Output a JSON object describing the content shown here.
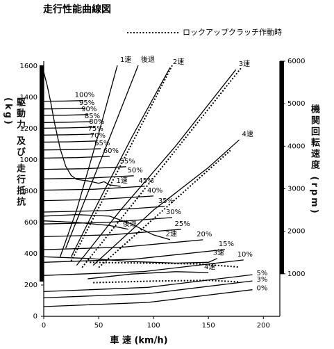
{
  "chart_data": {
    "type": "line",
    "title": "走行性能曲線図",
    "xlabel": "車 速 (km/h)",
    "ylabel": "駆動力 及び 走行抵抗 (kg)",
    "y2label": "機関回転速度 (rpm)",
    "legend": {
      "label": "ロックアップクラッチ作動時",
      "line_style": "dotted"
    },
    "xlim": [
      0,
      215
    ],
    "xticks": [
      0,
      50,
      100,
      150,
      200
    ],
    "ylim": [
      0,
      1630
    ],
    "yticks": [
      0,
      200,
      400,
      600,
      800,
      1000,
      1200,
      1400,
      1600
    ],
    "y2lim": [
      0,
      6000
    ],
    "y2ticks": [
      1000,
      2000,
      3000,
      4000,
      5000,
      6000
    ],
    "color": "#000000",
    "series": [
      {
        "name": "100%",
        "x": [
          0,
          18,
          36
        ],
        "values": [
          1374,
          1375,
          1378
        ]
      },
      {
        "name": "95%",
        "x": [
          0,
          19,
          38
        ],
        "values": [
          1325,
          1326,
          1329
        ]
      },
      {
        "name": "90%",
        "x": [
          0,
          20,
          40
        ],
        "values": [
          1284,
          1285,
          1289
        ]
      },
      {
        "name": "85%",
        "x": [
          0,
          21,
          43
        ],
        "values": [
          1238,
          1240,
          1244
        ]
      },
      {
        "name": "80%",
        "x": [
          0,
          23,
          47
        ],
        "values": [
          1202,
          1204,
          1209
        ]
      },
      {
        "name": "75%",
        "x": [
          0,
          23,
          46
        ],
        "values": [
          1158,
          1160,
          1164
        ]
      },
      {
        "name": "70%",
        "x": [
          0,
          24,
          48
        ],
        "values": [
          1113,
          1115,
          1120
        ]
      },
      {
        "name": "65%",
        "x": [
          0,
          26,
          52
        ],
        "values": [
          1063,
          1065,
          1071
        ]
      },
      {
        "name": "60%",
        "x": [
          0,
          30,
          60
        ],
        "values": [
          1011,
          1014,
          1022
        ]
      },
      {
        "name": "55%",
        "x": [
          0,
          37,
          75
        ],
        "values": [
          939,
          943,
          956
        ]
      },
      {
        "name": "50%",
        "x": [
          0,
          41,
          82
        ],
        "values": [
          878,
          883,
          898
        ]
      },
      {
        "name": "45%",
        "x": [
          0,
          46,
          92
        ],
        "values": [
          806,
          812,
          831
        ]
      },
      {
        "name": "40%",
        "x": [
          0,
          50,
          100
        ],
        "values": [
          739,
          747,
          769
        ]
      },
      {
        "name": "35%",
        "x": [
          0,
          55,
          110
        ],
        "values": [
          666,
          675,
          702
        ]
      },
      {
        "name": "30%",
        "x": [
          0,
          58,
          117
        ],
        "values": [
          590,
          600,
          631
        ]
      },
      {
        "name": "25%",
        "x": [
          0,
          62,
          125
        ],
        "values": [
          509,
          521,
          556
        ]
      },
      {
        "name": "20%",
        "x": [
          0,
          72,
          145
        ],
        "values": [
          426,
          442,
          489
        ]
      },
      {
        "name": "15%",
        "x": [
          0,
          82,
          165
        ],
        "values": [
          345,
          365,
          427
        ]
      },
      {
        "name": "10%",
        "x": [
          0,
          91,
          182
        ],
        "values": [
          261,
          286,
          360
        ]
      },
      {
        "name": "5%",
        "x": [
          0,
          95,
          190
        ],
        "values": [
          158,
          185,
          266
        ]
      },
      {
        "name": "3%",
        "x": [
          0,
          95,
          190
        ],
        "values": [
          118,
          145,
          226
        ]
      },
      {
        "name": "0%",
        "x": [
          0,
          95,
          190
        ],
        "values": [
          62,
          89,
          170
        ]
      },
      {
        "name": "1速",
        "x": [
          0,
          3,
          6,
          10,
          15,
          20,
          25,
          30,
          40,
          50,
          55,
          60,
          65,
          70
        ],
        "values": [
          1560,
          1480,
          1380,
          1230,
          1070,
          960,
          900,
          875,
          865,
          850,
          860,
          840,
          835,
          830
        ]
      },
      {
        "name": "後退",
        "x": [
          0,
          30,
          60,
          77
        ],
        "values": [
          610,
          600,
          580,
          556
        ]
      },
      {
        "name": "2速",
        "x": [
          0,
          30,
          60,
          80,
          100,
          115
        ],
        "values": [
          640,
          650,
          640,
          590,
          520,
          490
        ]
      },
      {
        "name": "3速",
        "x": [
          0,
          40,
          80,
          120,
          150,
          158
        ],
        "values": [
          380,
          370,
          350,
          340,
          345,
          370
        ]
      },
      {
        "name": "4速",
        "x": [
          40,
          80,
          120,
          150
        ],
        "values": [
          240,
          270,
          285,
          280
        ]
      },
      {
        "line_style": "dotted",
        "x": [
          42,
          90,
          140,
          178
        ],
        "values": [
          345,
          340,
          335,
          315
        ]
      },
      {
        "line_style": "dotted",
        "x": [
          45,
          100,
          150,
          178
        ],
        "values": [
          215,
          225,
          230,
          220
        ]
      },
      {
        "name": "1速",
        "axis": "y2",
        "x": [
          15,
          30,
          50,
          67
        ],
        "values": [
          1400,
          2500,
          4300,
          5900
        ]
      },
      {
        "name": "後退",
        "axis": "y2",
        "x": [
          20,
          40,
          60,
          86
        ],
        "values": [
          1600,
          2900,
          4200,
          5900
        ]
      },
      {
        "name": "2速",
        "axis": "y2",
        "x": [
          25,
          50,
          80,
          115
        ],
        "values": [
          1400,
          2700,
          4200,
          5850
        ]
      },
      {
        "name": "3速",
        "axis": "y2",
        "x": [
          30,
          70,
          120,
          175
        ],
        "values": [
          1200,
          2500,
          4000,
          5800
        ]
      },
      {
        "name": "4速",
        "axis": "y2",
        "x": [
          45,
          100,
          150,
          178
        ],
        "values": [
          1200,
          2500,
          3500,
          4150
        ]
      },
      {
        "axis": "y2",
        "line_style": "dotted",
        "x": [
          25,
          117
        ],
        "values": [
          1300,
          5900
        ]
      },
      {
        "axis": "y2",
        "line_style": "dotted",
        "x": [
          35,
          180
        ],
        "values": [
          1150,
          5850
        ]
      },
      {
        "axis": "y2",
        "line_style": "dotted",
        "x": [
          50,
          170
        ],
        "values": [
          1150,
          3900
        ]
      }
    ]
  }
}
